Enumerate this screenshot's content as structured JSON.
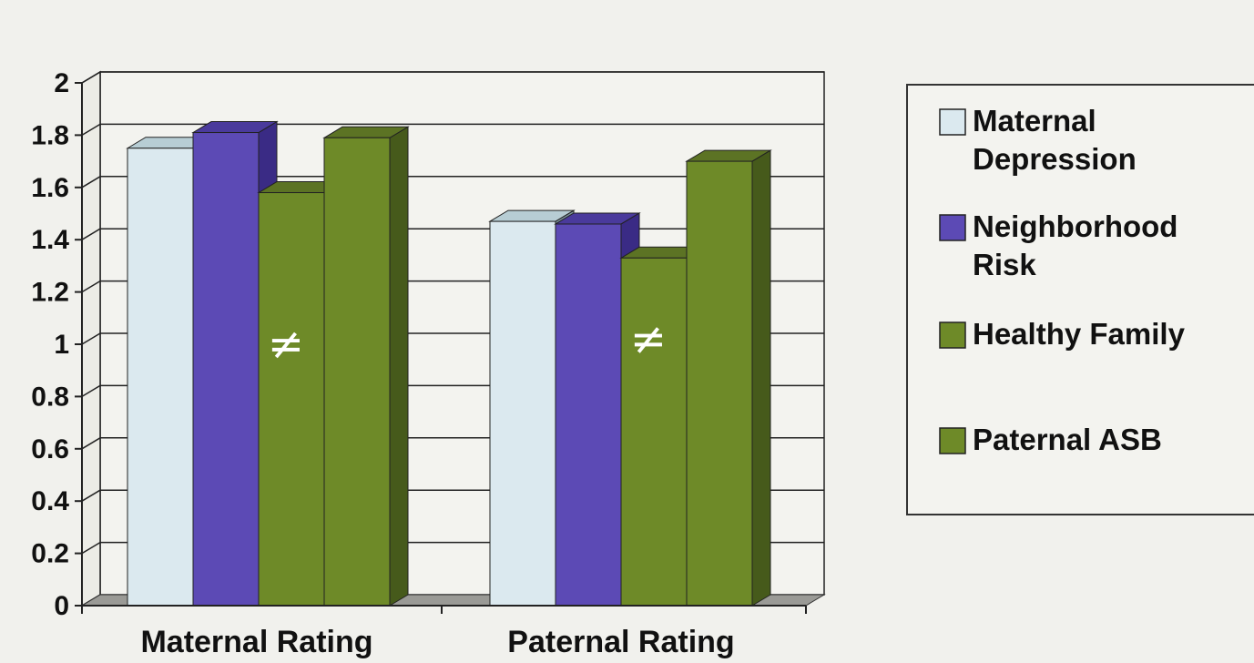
{
  "chart_data": {
    "type": "bar",
    "style": "3d-clustered",
    "categories": [
      "Maternal Rating",
      "Paternal Rating"
    ],
    "series": [
      {
        "name": "Maternal Depression",
        "values": [
          1.75,
          1.47
        ],
        "color": "#dbe9ef",
        "side": "#7e96a0",
        "top": "#b7cdd4"
      },
      {
        "name": "Neighborhood Risk",
        "values": [
          1.81,
          1.46
        ],
        "color": "#5c4ab5",
        "side": "#3a2b85",
        "top": "#4a3a9c"
      },
      {
        "name": "Healthy Family",
        "values": [
          1.58,
          1.33
        ],
        "color": "#6e8a28",
        "side": "#465a1b",
        "top": "#5c7324"
      },
      {
        "name": "Paternal ASB",
        "values": [
          1.79,
          1.7
        ],
        "color": "#6e8a28",
        "side": "#465a1b",
        "top": "#5c7324"
      }
    ],
    "y_ticks": [
      "0",
      "0.2",
      "0.4",
      "0.6",
      "0.8",
      "1",
      "1.2",
      "1.4",
      "1.6",
      "1.8",
      "2"
    ],
    "ylim": [
      0,
      2
    ],
    "grid": true,
    "legend_position": "right",
    "annotations": [
      {
        "text": "≠",
        "category": "Maternal Rating",
        "series": "Healthy Family",
        "y": 1.0
      },
      {
        "text": "≠",
        "category": "Paternal Rating",
        "series": "Healthy Family",
        "y": 1.02
      }
    ]
  }
}
